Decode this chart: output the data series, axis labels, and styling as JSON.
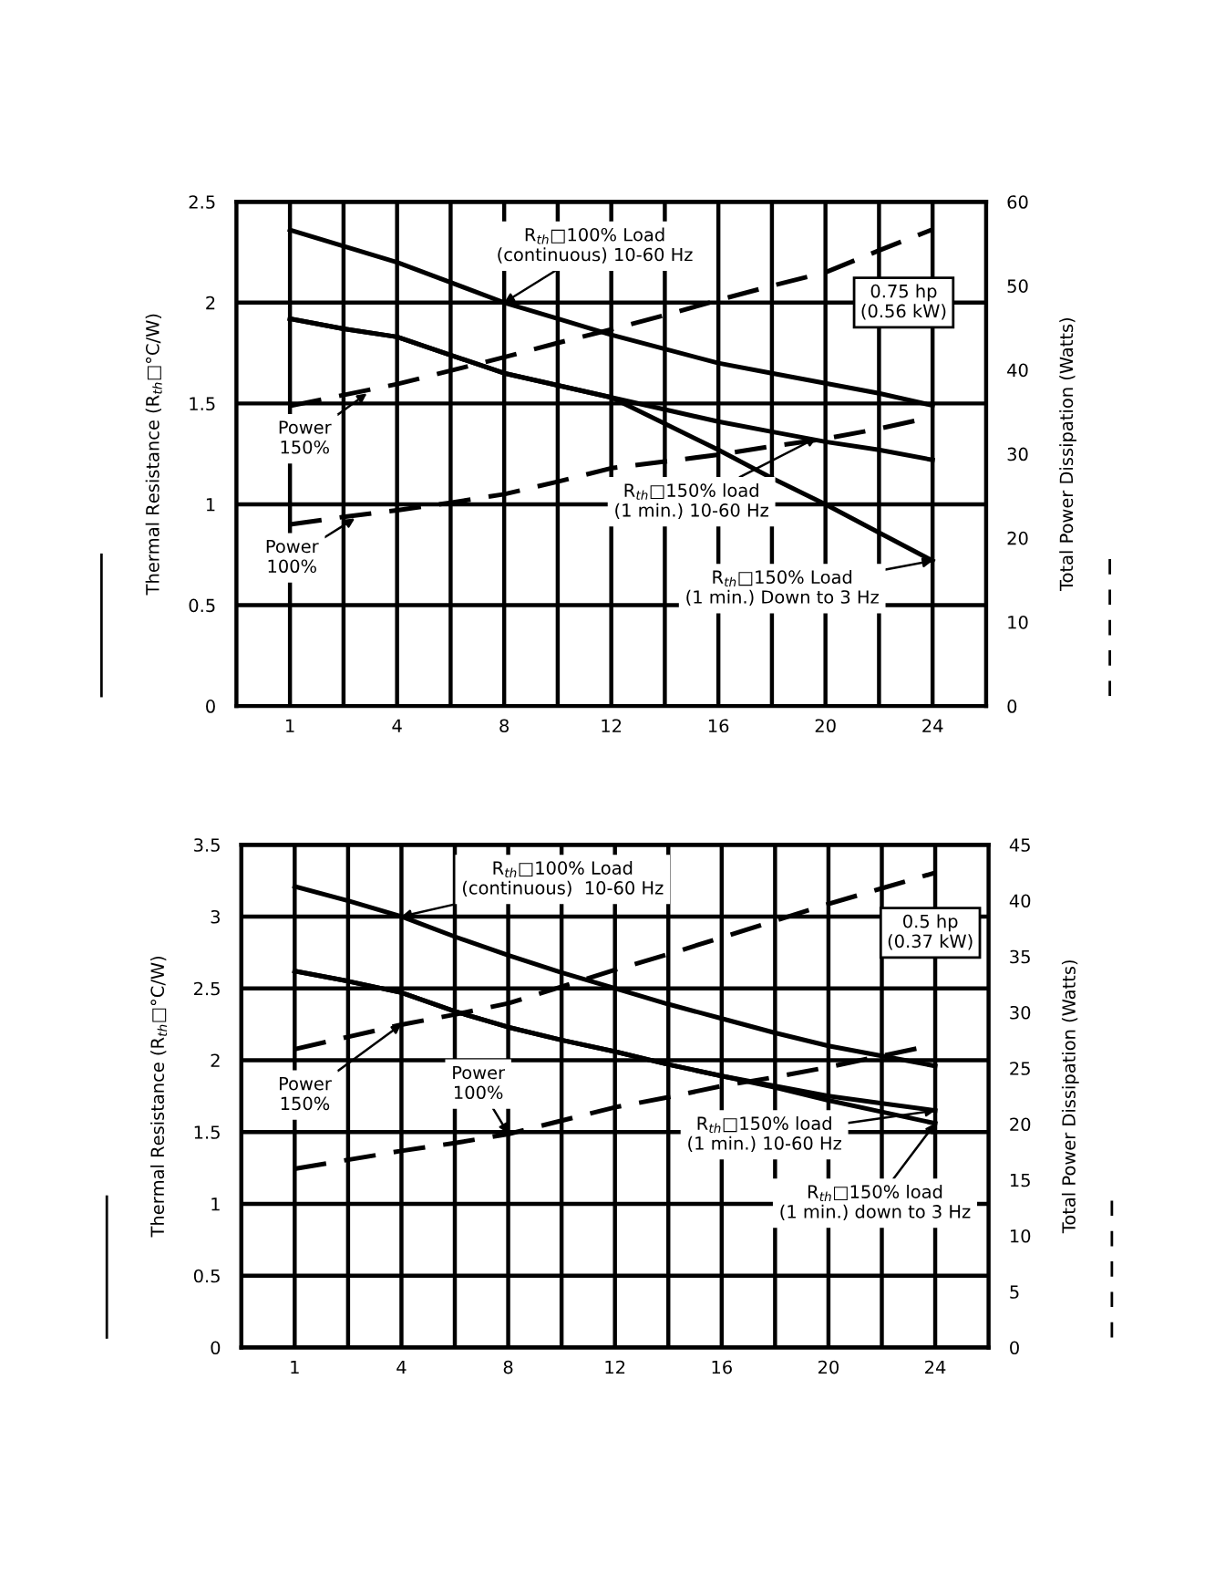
{
  "chart_data": [
    {
      "type": "line",
      "ylabel": "Thermal Resistance (R$_{th}$□°C/W)",
      "y2label": "Total Power Dissipation (Watts)",
      "categories": [
        "1",
        null,
        "4",
        null,
        "8",
        null,
        "12",
        null,
        "16",
        null,
        "20",
        null,
        "24"
      ],
      "ylim": [
        0,
        2.5
      ],
      "yticks": [
        0,
        0.5,
        1,
        1.5,
        2,
        2.5
      ],
      "y2lim": [
        0,
        60
      ],
      "y2ticks": [
        0,
        10,
        20,
        30,
        40,
        50,
        60
      ],
      "grid": true,
      "series": [
        {
          "color": "#000000",
          "line_style": "solid",
          "values": [
            2.36,
            2.28,
            2.2,
            2.1,
            2.0,
            1.92,
            1.84,
            1.77,
            1.7,
            1.65,
            1.6,
            1.55,
            1.49
          ]
        },
        {
          "color": "#000000",
          "line_style": "solid",
          "values": [
            1.92,
            1.87,
            1.83,
            1.74,
            1.65,
            1.59,
            1.53,
            1.47,
            1.41,
            1.36,
            1.31,
            1.27,
            1.22
          ]
        },
        {
          "color": "#000000",
          "line_style": "solid",
          "values": [
            1.92,
            1.87,
            1.83,
            1.74,
            1.65,
            1.59,
            1.53,
            1.4,
            1.27,
            1.13,
            1.0,
            0.86,
            0.72
          ]
        },
        {
          "color": "#000000",
          "line_style": "dashed",
          "axis": "y2",
          "values": [
            35.7,
            37.0,
            38.3,
            39.9,
            41.5,
            43.2,
            44.8,
            46.5,
            48.3,
            50.0,
            51.6,
            54.2,
            56.7
          ]
        },
        {
          "color": "#000000",
          "line_style": "dashed",
          "axis": "y2",
          "values": [
            21.6,
            22.5,
            23.3,
            24.2,
            25.2,
            26.7,
            28.3,
            29.1,
            29.9,
            30.9,
            31.8,
            33.0,
            34.4
          ]
        }
      ],
      "annotations": [
        {
          "text": "R$_{th}$□100% Load\n(continuous) 10-60 Hz",
          "x": "8",
          "y": 2.0
        },
        {
          "text": "Power\n150%",
          "y": 1.55
        },
        {
          "text": "Power\n100%",
          "y": 0.93
        },
        {
          "text": "R$_{th}$□150% load\n(1 min.) 10-60 Hz",
          "y": 1.33
        },
        {
          "text": "R$_{th}$□150% Load\n(1 min.) Down to 3 Hz",
          "x": "24",
          "y": 0.72
        },
        "0.75 hp\n(0.56 kW)"
      ]
    },
    {
      "type": "line",
      "ylabel": "Thermal Resistance (R$_{th}$□°C/W)",
      "y2label": "Total Power Dissipation (Watts)",
      "categories": [
        "1",
        null,
        "4",
        null,
        "8",
        null,
        "12",
        null,
        "16",
        null,
        "20",
        null,
        "24"
      ],
      "ylim": [
        0,
        3.5
      ],
      "yticks": [
        0,
        0.5,
        1,
        1.5,
        2,
        2.5,
        3,
        3.5
      ],
      "y2lim": [
        0,
        45
      ],
      "y2ticks": [
        0,
        5,
        10,
        15,
        20,
        25,
        30,
        35,
        40,
        45
      ],
      "grid": true,
      "series": [
        {
          "color": "#000000",
          "line_style": "solid",
          "values": [
            3.21,
            3.11,
            3.0,
            2.86,
            2.73,
            2.61,
            2.5,
            2.39,
            2.29,
            2.19,
            2.1,
            2.03,
            1.96
          ]
        },
        {
          "color": "#000000",
          "line_style": "solid",
          "values": [
            2.62,
            2.55,
            2.47,
            2.34,
            2.23,
            2.14,
            2.06,
            1.97,
            1.89,
            1.82,
            1.75,
            1.7,
            1.65
          ]
        },
        {
          "color": "#000000",
          "line_style": "solid",
          "values": [
            2.62,
            2.55,
            2.47,
            2.34,
            2.23,
            2.14,
            2.06,
            1.97,
            1.89,
            1.81,
            1.72,
            1.64,
            1.56
          ]
        },
        {
          "color": "#000000",
          "line_style": "dashed",
          "axis": "y2",
          "values": [
            26.7,
            27.8,
            28.9,
            29.8,
            30.8,
            32.3,
            33.8,
            35.2,
            36.7,
            38.2,
            39.7,
            41.1,
            42.5
          ]
        },
        {
          "color": "#000000",
          "line_style": "dashed",
          "axis": "y2",
          "values": [
            16.0,
            16.8,
            17.6,
            18.3,
            19.1,
            20.3,
            21.5,
            22.4,
            23.4,
            24.2,
            25.1,
            26.1,
            27.1
          ]
        }
      ],
      "annotations": [
        {
          "text": "R$_{th}$□100% Load\n(continuous)  10-60 Hz",
          "x": "4",
          "y": 3.0
        },
        {
          "text": "Power\n150%",
          "x": "4",
          "y": 2.25
        },
        {
          "text": "Power\n100%",
          "x": "8",
          "y": 1.49
        },
        {
          "text": "R$_{th}$□150% load\n(1 min.) 10-60 Hz",
          "x": "24",
          "y": 1.65
        },
        {
          "text": "R$_{th}$□150% load\n(1 min.) down to 3 Hz",
          "x": "24",
          "y": 1.56
        },
        "0.5 hp\n(0.37 kW)"
      ]
    }
  ]
}
